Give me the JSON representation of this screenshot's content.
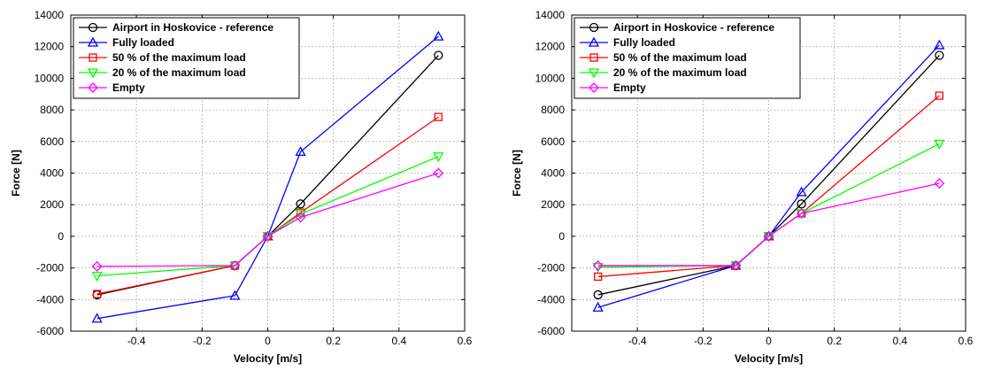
{
  "chart_data": [
    {
      "type": "line",
      "title": "",
      "xlabel": "Velocity [m/s]",
      "ylabel": "Force [N]",
      "xlim": [
        -0.6,
        0.6
      ],
      "ylim": [
        -6000,
        14000
      ],
      "xticks": [
        -0.4,
        -0.2,
        0,
        0.2,
        0.4,
        0.6
      ],
      "yticks": [
        -6000,
        -4000,
        -2000,
        0,
        2000,
        4000,
        6000,
        8000,
        10000,
        12000,
        14000
      ],
      "xtick_labels": [
        "-0.4",
        "-0.2",
        "0",
        "0.2",
        "0.4",
        "0.6"
      ],
      "ytick_labels": [
        "-6000",
        "-4000",
        "-2000",
        "0",
        "2000",
        "4000",
        "6000",
        "8000",
        "10000",
        "12000",
        "14000"
      ],
      "grid": true,
      "legend_position": "top-left",
      "x": [
        -0.52,
        -0.1,
        0,
        0.1,
        0.52
      ],
      "series": [
        {
          "name": "Airport in Hoskovice - reference",
          "color": "#000000",
          "marker": "circle",
          "values": [
            -3700,
            -1850,
            0,
            2050,
            11450
          ]
        },
        {
          "name": "Fully loaded",
          "color": "#0000ff",
          "marker": "triangle-up",
          "values": [
            -5200,
            -3750,
            0,
            5350,
            12650
          ]
        },
        {
          "name": "50 % of the maximum load",
          "color": "#ff0000",
          "marker": "square",
          "values": [
            -3650,
            -1850,
            0,
            1500,
            7550
          ]
        },
        {
          "name": "20 % of the maximum load",
          "color": "#00ff00",
          "marker": "triangle-down",
          "values": [
            -2500,
            -1850,
            0,
            1400,
            5050
          ]
        },
        {
          "name": "Empty",
          "color": "#ff00ff",
          "marker": "diamond",
          "values": [
            -1900,
            -1850,
            0,
            1200,
            4000
          ]
        }
      ]
    },
    {
      "type": "line",
      "title": "",
      "xlabel": "Velocity [m/s]",
      "ylabel": "Force [N]",
      "xlim": [
        -0.6,
        0.6
      ],
      "ylim": [
        -6000,
        14000
      ],
      "xticks": [
        -0.4,
        -0.2,
        0,
        0.2,
        0.4,
        0.6
      ],
      "yticks": [
        -6000,
        -4000,
        -2000,
        0,
        2000,
        4000,
        6000,
        8000,
        10000,
        12000,
        14000
      ],
      "xtick_labels": [
        "-0.4",
        "-0.2",
        "0",
        "0.2",
        "0.4",
        "0.6"
      ],
      "ytick_labels": [
        "-6000",
        "-4000",
        "-2000",
        "0",
        "2000",
        "4000",
        "6000",
        "8000",
        "10000",
        "12000",
        "14000"
      ],
      "grid": true,
      "legend_position": "top-left",
      "x": [
        -0.52,
        -0.1,
        0,
        0.1,
        0.52
      ],
      "series": [
        {
          "name": "Airport in Hoskovice - reference",
          "color": "#000000",
          "marker": "circle",
          "values": [
            -3700,
            -1850,
            0,
            2050,
            11450
          ]
        },
        {
          "name": "Fully loaded",
          "color": "#0000ff",
          "marker": "triangle-up",
          "values": [
            -4500,
            -1850,
            0,
            2800,
            12100
          ]
        },
        {
          "name": "50 % of the maximum load",
          "color": "#ff0000",
          "marker": "square",
          "values": [
            -2550,
            -1850,
            0,
            1450,
            8900
          ]
        },
        {
          "name": "20 % of the maximum load",
          "color": "#00ff00",
          "marker": "triangle-down",
          "values": [
            -1950,
            -1850,
            0,
            1450,
            5850
          ]
        },
        {
          "name": "Empty",
          "color": "#ff00ff",
          "marker": "diamond",
          "values": [
            -1850,
            -1850,
            0,
            1450,
            3350
          ]
        }
      ]
    }
  ]
}
